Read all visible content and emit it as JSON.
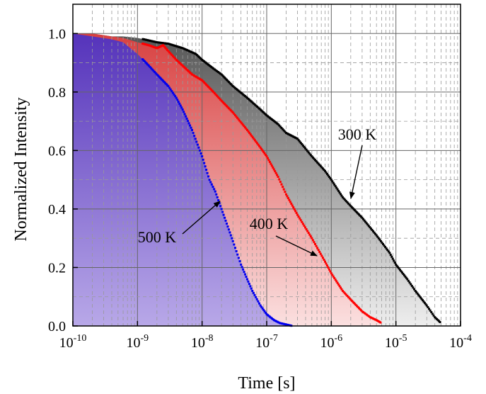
{
  "chart_data": {
    "type": "scatter",
    "xlabel": "Time [s]",
    "ylabel": "Normalized Intensity",
    "xscale": "log",
    "xlim": [
      1e-10,
      0.0001
    ],
    "ylim": [
      0.0,
      1.1
    ],
    "grid": true,
    "x_tick_labels": [
      {
        "base": "10",
        "exp": "-10",
        "value": 1e-10
      },
      {
        "base": "10",
        "exp": "-9",
        "value": 1e-09
      },
      {
        "base": "10",
        "exp": "-8",
        "value": 1e-08
      },
      {
        "base": "10",
        "exp": "-7",
        "value": 1e-07
      },
      {
        "base": "10",
        "exp": "-6",
        "value": 1e-06
      },
      {
        "base": "10",
        "exp": "-5",
        "value": 1e-05
      },
      {
        "base": "10",
        "exp": "-4",
        "value": 0.0001
      }
    ],
    "y_tick_labels": [
      "0.0",
      "0.2",
      "0.4",
      "0.6",
      "0.8",
      "1.0"
    ],
    "y_ticks": [
      0.0,
      0.2,
      0.4,
      0.6,
      0.8,
      1.0
    ],
    "series": [
      {
        "name": "300 K",
        "color": "#000000",
        "fill_top": "#555555",
        "fill_bottom": "#eeeeee",
        "x": [
          1e-10,
          2e-10,
          4e-10,
          6e-10,
          1e-09,
          2e-09,
          3e-09,
          5e-09,
          8e-09,
          1e-08,
          1.5e-08,
          2e-08,
          3e-08,
          5e-08,
          8e-08,
          1e-07,
          1.5e-07,
          2e-07,
          3e-07,
          5e-07,
          8e-07,
          1e-06,
          1.5e-06,
          2e-06,
          3e-06,
          5e-06,
          8e-06,
          1e-05,
          1.5e-05,
          2e-05,
          3e-05,
          4e-05,
          5e-05
        ],
        "y": [
          1.0,
          1.0,
          0.99,
          0.99,
          0.985,
          0.97,
          0.965,
          0.95,
          0.93,
          0.91,
          0.88,
          0.86,
          0.82,
          0.78,
          0.74,
          0.72,
          0.69,
          0.66,
          0.64,
          0.58,
          0.53,
          0.5,
          0.44,
          0.41,
          0.37,
          0.31,
          0.25,
          0.21,
          0.16,
          0.12,
          0.07,
          0.03,
          0.01
        ]
      },
      {
        "name": "400 K",
        "color": "#ff0000",
        "fill_top": "#d84040",
        "fill_bottom": "#fbe0e0",
        "x": [
          1e-10,
          2e-10,
          4e-10,
          6e-10,
          1e-09,
          1.5e-09,
          2e-09,
          2.5e-09,
          3e-09,
          4e-09,
          5e-09,
          7e-09,
          1e-08,
          1.5e-08,
          2e-08,
          3e-08,
          5e-08,
          8e-08,
          1e-07,
          1.5e-07,
          2e-07,
          3e-07,
          5e-07,
          8e-07,
          1e-06,
          1.5e-06,
          2e-06,
          3e-06,
          4e-06,
          5e-06,
          6e-06
        ],
        "y": [
          1.0,
          1.0,
          0.99,
          0.985,
          0.97,
          0.96,
          0.95,
          0.96,
          0.94,
          0.91,
          0.89,
          0.86,
          0.84,
          0.8,
          0.77,
          0.73,
          0.67,
          0.61,
          0.58,
          0.51,
          0.45,
          0.38,
          0.3,
          0.22,
          0.18,
          0.12,
          0.09,
          0.05,
          0.03,
          0.02,
          0.01
        ]
      },
      {
        "name": "500 K",
        "color": "#0000ee",
        "fill_top": "#5533bb",
        "fill_bottom": "#b8a8e8",
        "x": [
          1e-10,
          2e-10,
          4e-10,
          6e-10,
          1e-09,
          1.5e-09,
          2e-09,
          3e-09,
          4e-09,
          5e-09,
          7e-09,
          1e-08,
          1.3e-08,
          1.6e-08,
          2e-08,
          2.5e-08,
          3e-08,
          4e-08,
          5e-08,
          6e-08,
          8e-08,
          1e-07,
          1.3e-07,
          1.6e-07,
          2e-07,
          2.5e-07
        ],
        "y": [
          1.0,
          0.99,
          0.98,
          0.97,
          0.93,
          0.89,
          0.86,
          0.82,
          0.78,
          0.74,
          0.67,
          0.58,
          0.5,
          0.46,
          0.4,
          0.34,
          0.29,
          0.21,
          0.16,
          0.12,
          0.07,
          0.04,
          0.02,
          0.01,
          0.005,
          0.0
        ]
      }
    ],
    "annotations": [
      {
        "text": "300 K",
        "series": "300 K"
      },
      {
        "text": "400 K",
        "series": "400 K"
      },
      {
        "text": "500 K",
        "series": "500 K"
      }
    ]
  }
}
